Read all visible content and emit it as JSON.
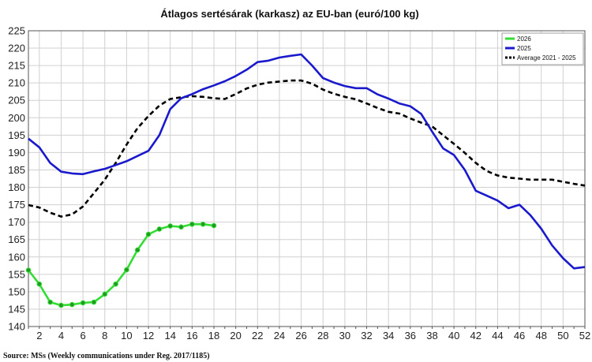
{
  "chart_data": {
    "type": "line",
    "title": "Átlagos sertésárak (karkasz) az EU-ban (euró/100 kg)",
    "xlabel": "",
    "ylabel": "",
    "xlim": [
      1,
      52
    ],
    "ylim": [
      140,
      225
    ],
    "y_ticks": [
      140,
      145,
      150,
      155,
      160,
      165,
      170,
      175,
      180,
      185,
      190,
      195,
      200,
      205,
      210,
      215,
      220,
      225
    ],
    "x_ticks": [
      2,
      4,
      6,
      8,
      10,
      12,
      14,
      16,
      18,
      20,
      22,
      24,
      26,
      28,
      30,
      32,
      34,
      36,
      38,
      40,
      42,
      44,
      46,
      48,
      50,
      52
    ],
    "grid": true,
    "legend_position": "top-right",
    "source": "Source: MSs (Weekly communications under Reg. 2017/1185)",
    "series": [
      {
        "name": "2026",
        "color": "#33dd33",
        "style": "solid-markers",
        "x": [
          1,
          2,
          3,
          4,
          5,
          6,
          7,
          8,
          9,
          10,
          11,
          12,
          13,
          14,
          15,
          16,
          17,
          18
        ],
        "y": [
          156.2,
          152.2,
          147.0,
          146.1,
          146.3,
          146.8,
          147.0,
          149.3,
          152.2,
          156.3,
          162.0,
          166.5,
          168.0,
          168.9,
          168.6,
          169.4,
          169.4,
          169.0
        ]
      },
      {
        "name": "2025",
        "color": "#1a1acc",
        "style": "solid",
        "x": [
          1,
          2,
          3,
          4,
          5,
          6,
          7,
          8,
          9,
          10,
          11,
          12,
          13,
          14,
          15,
          16,
          17,
          18,
          19,
          20,
          21,
          22,
          23,
          24,
          25,
          26,
          27,
          28,
          29,
          30,
          31,
          32,
          33,
          34,
          35,
          36,
          37,
          38,
          39,
          40,
          41,
          42,
          43,
          44,
          45,
          46,
          47,
          48,
          49,
          50,
          51,
          52
        ],
        "y": [
          194.0,
          191.5,
          187.0,
          184.5,
          184.0,
          183.8,
          184.6,
          185.3,
          186.4,
          187.5,
          189.0,
          190.5,
          195.0,
          202.5,
          205.6,
          206.8,
          208.2,
          209.3,
          210.5,
          212.0,
          213.8,
          216.0,
          216.4,
          217.3,
          217.8,
          218.2,
          215.0,
          211.4,
          210.1,
          209.1,
          208.5,
          208.5,
          206.7,
          205.5,
          204.1,
          203.3,
          201.1,
          196.0,
          191.2,
          189.3,
          185.0,
          179.0,
          177.6,
          176.2,
          174.0,
          175.0,
          172.0,
          168.1,
          163.3,
          159.6,
          156.7,
          157.1
        ]
      },
      {
        "name": "Average 2021 - 2025",
        "color": "#000000",
        "style": "dashed",
        "x": [
          1,
          2,
          3,
          4,
          5,
          6,
          7,
          8,
          9,
          10,
          11,
          12,
          13,
          14,
          15,
          16,
          17,
          18,
          19,
          20,
          21,
          22,
          23,
          24,
          25,
          26,
          27,
          28,
          29,
          30,
          31,
          32,
          33,
          34,
          35,
          36,
          37,
          38,
          39,
          40,
          41,
          42,
          43,
          44,
          45,
          46,
          47,
          48,
          49,
          50,
          51,
          52
        ],
        "y": [
          174.9,
          174.2,
          172.7,
          171.6,
          172.2,
          174.5,
          178.3,
          182.2,
          187.0,
          192.3,
          197.0,
          200.5,
          203.5,
          205.4,
          205.9,
          206.2,
          206.0,
          205.6,
          205.4,
          206.8,
          208.4,
          209.5,
          210.1,
          210.4,
          210.7,
          210.7,
          209.8,
          208.1,
          206.9,
          206.0,
          205.3,
          204.1,
          202.8,
          201.7,
          201.2,
          199.8,
          198.6,
          197.5,
          195.0,
          192.5,
          189.9,
          187.0,
          184.7,
          183.4,
          182.8,
          182.5,
          182.2,
          182.2,
          182.2,
          181.6,
          181.0,
          180.5
        ]
      }
    ]
  }
}
